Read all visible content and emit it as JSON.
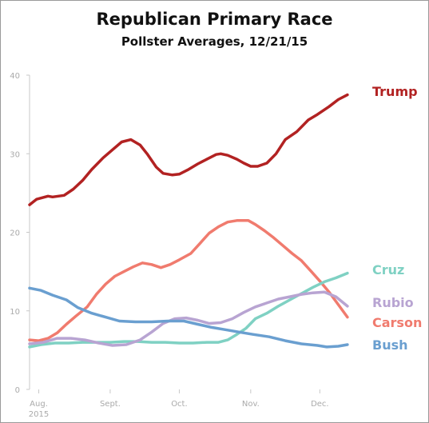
{
  "chart_data": {
    "type": "line",
    "title": "Republican Primary Race",
    "subtitle": "Pollster Averages, 12/21/15",
    "xlabel": "",
    "ylabel": "",
    "ylim": [
      0,
      40
    ],
    "yticks": [
      "0",
      "10",
      "20",
      "30",
      "40"
    ],
    "xticks": [
      {
        "label": "Aug.",
        "sub": "2015",
        "x": "2015-08-01"
      },
      {
        "label": "Sept.",
        "sub": "",
        "x": "2015-09-01"
      },
      {
        "label": "Oct.",
        "sub": "",
        "x": "2015-10-01"
      },
      {
        "label": "Nov.",
        "sub": "",
        "x": "2015-11-01"
      },
      {
        "label": "Dec.",
        "sub": "",
        "x": "2015-12-01"
      }
    ],
    "xlim": [
      "2015-07-28",
      "2015-12-21"
    ],
    "grid": false,
    "legend": "inline-right",
    "series": [
      {
        "name": "Trump",
        "color": "#b22222",
        "points": [
          [
            "2015-07-28",
            23.5
          ],
          [
            "2015-07-31",
            24.2
          ],
          [
            "2015-08-05",
            24.6
          ],
          [
            "2015-08-07",
            24.5
          ],
          [
            "2015-08-12",
            24.7
          ],
          [
            "2015-08-16",
            25.5
          ],
          [
            "2015-08-20",
            26.6
          ],
          [
            "2015-08-24",
            28.0
          ],
          [
            "2015-08-29",
            29.5
          ],
          [
            "2015-09-02",
            30.5
          ],
          [
            "2015-09-06",
            31.5
          ],
          [
            "2015-09-10",
            31.8
          ],
          [
            "2015-09-14",
            31.1
          ],
          [
            "2015-09-17",
            30.0
          ],
          [
            "2015-09-21",
            28.3
          ],
          [
            "2015-09-24",
            27.5
          ],
          [
            "2015-09-28",
            27.3
          ],
          [
            "2015-10-01",
            27.4
          ],
          [
            "2015-10-05",
            28.0
          ],
          [
            "2015-10-09",
            28.7
          ],
          [
            "2015-10-13",
            29.3
          ],
          [
            "2015-10-17",
            29.9
          ],
          [
            "2015-10-19",
            30.0
          ],
          [
            "2015-10-22",
            29.8
          ],
          [
            "2015-10-26",
            29.3
          ],
          [
            "2015-10-29",
            28.8
          ],
          [
            "2015-11-01",
            28.4
          ],
          [
            "2015-11-04",
            28.4
          ],
          [
            "2015-11-08",
            28.8
          ],
          [
            "2015-11-12",
            30.0
          ],
          [
            "2015-11-16",
            31.8
          ],
          [
            "2015-11-21",
            32.8
          ],
          [
            "2015-11-26",
            34.3
          ],
          [
            "2015-11-30",
            35.0
          ],
          [
            "2015-12-05",
            36.0
          ],
          [
            "2015-12-09",
            36.9
          ],
          [
            "2015-12-13",
            37.5
          ]
        ]
      },
      {
        "name": "Carson",
        "color": "#f07b6e",
        "points": [
          [
            "2015-07-28",
            6.3
          ],
          [
            "2015-08-01",
            6.2
          ],
          [
            "2015-08-05",
            6.5
          ],
          [
            "2015-08-09",
            7.2
          ],
          [
            "2015-08-13",
            8.3
          ],
          [
            "2015-08-17",
            9.3
          ],
          [
            "2015-08-22",
            10.5
          ],
          [
            "2015-08-26",
            12.1
          ],
          [
            "2015-08-30",
            13.4
          ],
          [
            "2015-09-03",
            14.4
          ],
          [
            "2015-09-07",
            15.0
          ],
          [
            "2015-09-11",
            15.6
          ],
          [
            "2015-09-15",
            16.1
          ],
          [
            "2015-09-19",
            15.9
          ],
          [
            "2015-09-23",
            15.5
          ],
          [
            "2015-09-27",
            15.9
          ],
          [
            "2015-10-01",
            16.5
          ],
          [
            "2015-10-06",
            17.3
          ],
          [
            "2015-10-10",
            18.6
          ],
          [
            "2015-10-14",
            19.9
          ],
          [
            "2015-10-18",
            20.7
          ],
          [
            "2015-10-22",
            21.3
          ],
          [
            "2015-10-26",
            21.5
          ],
          [
            "2015-10-31",
            21.5
          ],
          [
            "2015-11-03",
            21.0
          ],
          [
            "2015-11-07",
            20.2
          ],
          [
            "2015-11-11",
            19.3
          ],
          [
            "2015-11-15",
            18.3
          ],
          [
            "2015-11-19",
            17.3
          ],
          [
            "2015-11-23",
            16.4
          ],
          [
            "2015-11-27",
            15.1
          ],
          [
            "2015-12-01",
            13.8
          ],
          [
            "2015-12-05",
            12.4
          ],
          [
            "2015-12-09",
            10.8
          ],
          [
            "2015-12-13",
            9.2
          ]
        ]
      },
      {
        "name": "Cruz",
        "color": "#7fd1c3",
        "points": [
          [
            "2015-07-28",
            5.4
          ],
          [
            "2015-08-02",
            5.7
          ],
          [
            "2015-08-08",
            5.9
          ],
          [
            "2015-08-14",
            5.9
          ],
          [
            "2015-08-20",
            6.0
          ],
          [
            "2015-08-26",
            6.0
          ],
          [
            "2015-09-01",
            6.0
          ],
          [
            "2015-09-07",
            6.1
          ],
          [
            "2015-09-13",
            6.1
          ],
          [
            "2015-09-19",
            6.0
          ],
          [
            "2015-09-25",
            6.0
          ],
          [
            "2015-10-01",
            5.9
          ],
          [
            "2015-10-07",
            5.9
          ],
          [
            "2015-10-13",
            6.0
          ],
          [
            "2015-10-18",
            6.0
          ],
          [
            "2015-10-22",
            6.3
          ],
          [
            "2015-10-26",
            7.0
          ],
          [
            "2015-10-30",
            7.8
          ],
          [
            "2015-11-03",
            9.0
          ],
          [
            "2015-11-08",
            9.7
          ],
          [
            "2015-11-13",
            10.6
          ],
          [
            "2015-11-18",
            11.4
          ],
          [
            "2015-11-23",
            12.2
          ],
          [
            "2015-11-28",
            13.0
          ],
          [
            "2015-12-03",
            13.7
          ],
          [
            "2015-12-08",
            14.2
          ],
          [
            "2015-12-13",
            14.8
          ]
        ]
      },
      {
        "name": "Rubio",
        "color": "#b8a4d2",
        "points": [
          [
            "2015-07-28",
            5.8
          ],
          [
            "2015-08-03",
            6.0
          ],
          [
            "2015-08-09",
            6.5
          ],
          [
            "2015-08-15",
            6.5
          ],
          [
            "2015-08-21",
            6.3
          ],
          [
            "2015-08-27",
            5.9
          ],
          [
            "2015-09-02",
            5.6
          ],
          [
            "2015-09-08",
            5.7
          ],
          [
            "2015-09-14",
            6.3
          ],
          [
            "2015-09-19",
            7.3
          ],
          [
            "2015-09-24",
            8.4
          ],
          [
            "2015-09-29",
            9.0
          ],
          [
            "2015-10-04",
            9.1
          ],
          [
            "2015-10-09",
            8.8
          ],
          [
            "2015-10-14",
            8.4
          ],
          [
            "2015-10-19",
            8.5
          ],
          [
            "2015-10-24",
            9.0
          ],
          [
            "2015-10-29",
            9.8
          ],
          [
            "2015-11-03",
            10.5
          ],
          [
            "2015-11-08",
            11.0
          ],
          [
            "2015-11-13",
            11.5
          ],
          [
            "2015-11-18",
            11.8
          ],
          [
            "2015-11-23",
            12.1
          ],
          [
            "2015-11-28",
            12.3
          ],
          [
            "2015-12-03",
            12.4
          ],
          [
            "2015-12-08",
            11.8
          ],
          [
            "2015-12-13",
            10.6
          ]
        ]
      },
      {
        "name": "Bush",
        "color": "#6a9fd0",
        "points": [
          [
            "2015-07-28",
            12.9
          ],
          [
            "2015-08-02",
            12.6
          ],
          [
            "2015-08-07",
            12.0
          ],
          [
            "2015-08-13",
            11.4
          ],
          [
            "2015-08-18",
            10.4
          ],
          [
            "2015-08-24",
            9.7
          ],
          [
            "2015-08-30",
            9.2
          ],
          [
            "2015-09-05",
            8.7
          ],
          [
            "2015-09-12",
            8.6
          ],
          [
            "2015-09-19",
            8.6
          ],
          [
            "2015-09-26",
            8.7
          ],
          [
            "2015-10-03",
            8.7
          ],
          [
            "2015-10-09",
            8.3
          ],
          [
            "2015-10-15",
            7.9
          ],
          [
            "2015-10-21",
            7.6
          ],
          [
            "2015-10-27",
            7.3
          ],
          [
            "2015-11-02",
            7.0
          ],
          [
            "2015-11-09",
            6.7
          ],
          [
            "2015-11-16",
            6.2
          ],
          [
            "2015-11-23",
            5.8
          ],
          [
            "2015-11-30",
            5.6
          ],
          [
            "2015-12-04",
            5.4
          ],
          [
            "2015-12-09",
            5.5
          ],
          [
            "2015-12-13",
            5.7
          ]
        ]
      }
    ]
  }
}
